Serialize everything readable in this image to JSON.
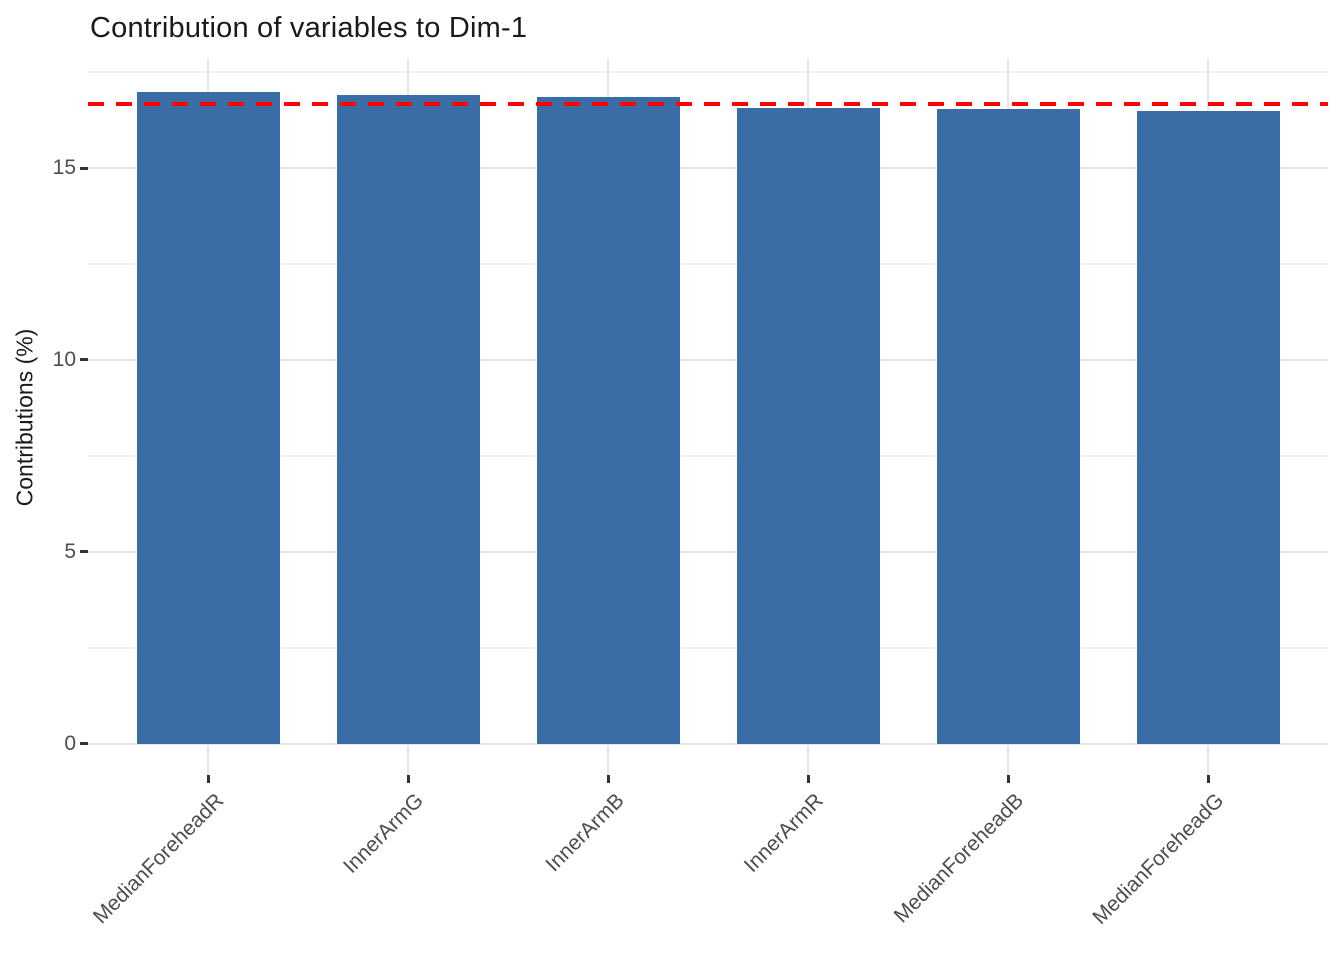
{
  "chart_data": {
    "type": "bar",
    "title": "Contribution of variables to Dim-1",
    "ylabel": "Contributions (%)",
    "xlabel": "",
    "categories": [
      "MedianForeheadR",
      "InnerArmG",
      "InnerArmB",
      "InnerArmR",
      "MedianForeheadB",
      "MedianForeheadG"
    ],
    "values": [
      16.97,
      16.9,
      16.84,
      16.57,
      16.53,
      16.49
    ],
    "y_ticks": [
      0,
      5,
      10,
      15
    ],
    "y_minor_ticks": [
      2.5,
      7.5,
      12.5,
      17.5
    ],
    "ylim": [
      -0.81,
      17.84
    ],
    "reference_line": {
      "value": 16.67,
      "style": "dashed",
      "color": "#ff0000"
    },
    "grid": true,
    "legend_position": "none",
    "bar_color": "#3a6da5",
    "background_color": "#ffffff",
    "major_grid_color": "#e6e6e6",
    "minor_grid_color": "#f1f1f1",
    "tick_label_color": "#4d4d4d",
    "x_label_angle_deg": 45
  }
}
